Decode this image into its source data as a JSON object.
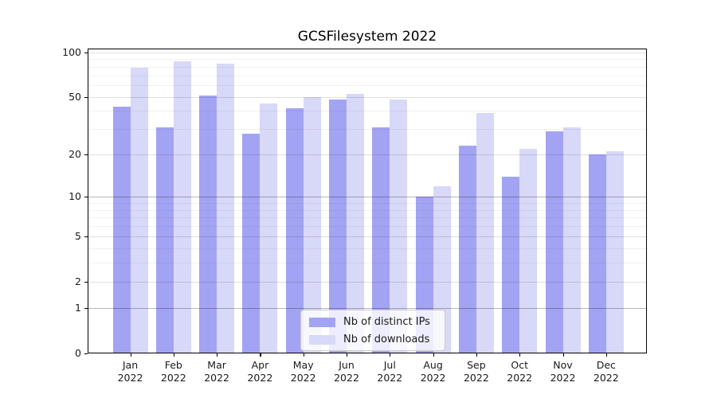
{
  "title": "GCSFilesystem 2022",
  "chart_data": {
    "type": "bar",
    "title": "GCSFilesystem 2022",
    "categories": [
      "Jan 2022",
      "Feb 2022",
      "Mar 2022",
      "Apr 2022",
      "May 2022",
      "Jun 2022",
      "Jul 2022",
      "Aug 2022",
      "Sep 2022",
      "Oct 2022",
      "Nov 2022",
      "Dec 2022"
    ],
    "series": [
      {
        "name": "Nb of distinct IPs",
        "color": "#a3a3f3",
        "values": [
          43,
          31,
          51,
          28,
          42,
          48,
          31,
          10,
          23,
          14,
          29,
          20
        ]
      },
      {
        "name": "Nb of downloads",
        "color": "#d8d8f8",
        "values": [
          79,
          87,
          84,
          45,
          50,
          52,
          48,
          12,
          39,
          22,
          31,
          21
        ]
      }
    ],
    "xlabel": "",
    "ylabel": "",
    "yscale": "log1p",
    "ylim": [
      0,
      106
    ],
    "ytick_values": [
      100,
      50,
      20,
      10,
      5,
      2,
      1,
      0
    ],
    "ytick_labels": [
      "100",
      "50",
      "20",
      "10",
      "5",
      "2",
      "1",
      "0"
    ],
    "minor_grid_values": [
      3,
      4,
      6,
      7,
      8,
      9,
      30,
      40,
      60,
      70,
      80,
      90
    ],
    "decade_grid_values": [
      1,
      10
    ],
    "grid": true,
    "legend_position": "lower center"
  },
  "legend": {
    "items": [
      {
        "label": "Nb of distinct IPs",
        "color": "#a3a3f3"
      },
      {
        "label": "Nb of downloads",
        "color": "#d8d8f8"
      }
    ]
  }
}
